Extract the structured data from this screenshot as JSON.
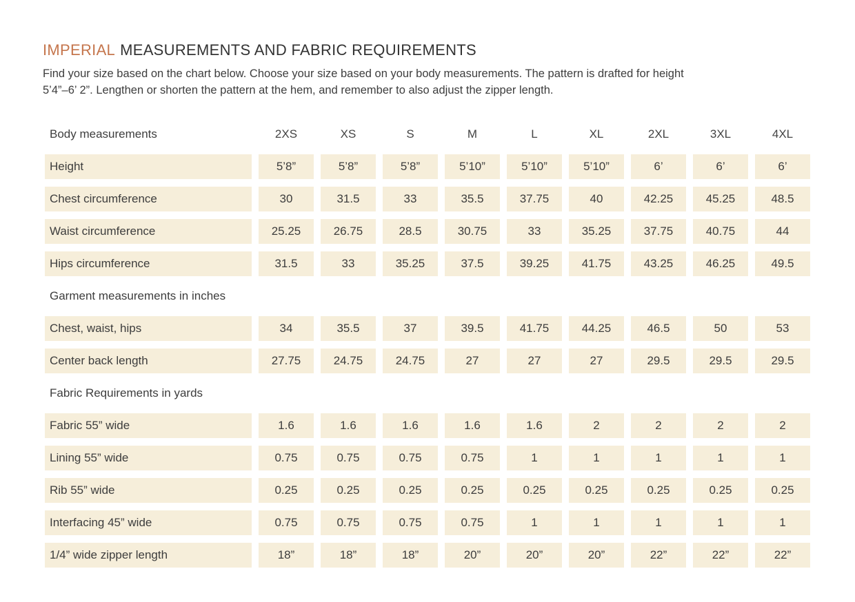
{
  "colors": {
    "accent_orange": "#c5764d",
    "cell_background": "#f6eeda",
    "text": "#3d3d3d"
  },
  "header": {
    "title_accent": "IMPERIAL",
    "title_rest": "MEASUREMENTS AND FABRIC REQUIREMENTS",
    "subtitle_line1": "Find your size based on the chart below. Choose your size based on your body measurements. The pattern is drafted for height",
    "subtitle_line2": "5’4”–6’ 2”. Lengthen or shorten the pattern at the hem, and remember to also adjust the zipper length."
  },
  "table": {
    "sizes_header_label": "Body measurements",
    "sizes": [
      "2XS",
      "XS",
      "S",
      "M",
      "L",
      "XL",
      "2XL",
      "3XL",
      "4XL"
    ],
    "sections": [
      {
        "header": null,
        "rows": [
          {
            "label": "Height",
            "values": [
              "5’8”",
              "5’8”",
              "5’8”",
              "5’10”",
              "5’10”",
              "5’10”",
              "6’",
              "6’",
              "6’"
            ]
          },
          {
            "label": "Chest circumference",
            "values": [
              "30",
              "31.5",
              "33",
              "35.5",
              "37.75",
              "40",
              "42.25",
              "45.25",
              "48.5"
            ]
          },
          {
            "label": "Waist circumference",
            "values": [
              "25.25",
              "26.75",
              "28.5",
              "30.75",
              "33",
              "35.25",
              "37.75",
              "40.75",
              "44"
            ]
          },
          {
            "label": "Hips circumference",
            "values": [
              "31.5",
              "33",
              "35.25",
              "37.5",
              "39.25",
              "41.75",
              "43.25",
              "46.25",
              "49.5"
            ]
          }
        ]
      },
      {
        "header": "Garment measurements in inches",
        "rows": [
          {
            "label": "Chest, waist, hips",
            "values": [
              "34",
              "35.5",
              "37",
              "39.5",
              "41.75",
              "44.25",
              "46.5",
              "50",
              "53"
            ]
          },
          {
            "label": "Center back length",
            "values": [
              "27.75",
              "24.75",
              "24.75",
              "27",
              "27",
              "27",
              "29.5",
              "29.5",
              "29.5"
            ]
          }
        ]
      },
      {
        "header": "Fabric Requirements in yards",
        "rows": [
          {
            "label": "Fabric 55” wide",
            "values": [
              "1.6",
              "1.6",
              "1.6",
              "1.6",
              "1.6",
              "2",
              "2",
              "2",
              "2"
            ]
          },
          {
            "label": "Lining 55” wide",
            "values": [
              "0.75",
              "0.75",
              "0.75",
              "0.75",
              "1",
              "1",
              "1",
              "1",
              "1"
            ]
          },
          {
            "label": "Rib 55” wide",
            "values": [
              "0.25",
              "0.25",
              "0.25",
              "0.25",
              "0.25",
              "0.25",
              "0.25",
              "0.25",
              "0.25"
            ]
          },
          {
            "label": "Interfacing 45” wide",
            "values": [
              "0.75",
              "0.75",
              "0.75",
              "0.75",
              "1",
              "1",
              "1",
              "1",
              "1"
            ]
          },
          {
            "label": "1/4” wide zipper length",
            "values": [
              "18”",
              "18”",
              "18”",
              "20”",
              "20”",
              "20”",
              "22”",
              "22”",
              "22”"
            ]
          }
        ]
      }
    ]
  },
  "chart_data": {
    "type": "table",
    "title": "IMPERIAL MEASUREMENTS AND FABRIC REQUIREMENTS",
    "columns": [
      "2XS",
      "XS",
      "S",
      "M",
      "L",
      "XL",
      "2XL",
      "3XL",
      "4XL"
    ],
    "rows": [
      {
        "group": "Body measurements",
        "label": "Height",
        "values": [
          "5’8”",
          "5’8”",
          "5’8”",
          "5’10”",
          "5’10”",
          "5’10”",
          "6’",
          "6’",
          "6’"
        ]
      },
      {
        "group": "Body measurements",
        "label": "Chest circumference",
        "values": [
          30,
          31.5,
          33,
          35.5,
          37.75,
          40,
          42.25,
          45.25,
          48.5
        ]
      },
      {
        "group": "Body measurements",
        "label": "Waist circumference",
        "values": [
          25.25,
          26.75,
          28.5,
          30.75,
          33,
          35.25,
          37.75,
          40.75,
          44
        ]
      },
      {
        "group": "Body measurements",
        "label": "Hips circumference",
        "values": [
          31.5,
          33,
          35.25,
          37.5,
          39.25,
          41.75,
          43.25,
          46.25,
          49.5
        ]
      },
      {
        "group": "Garment measurements in inches",
        "label": "Chest, waist, hips",
        "values": [
          34,
          35.5,
          37,
          39.5,
          41.75,
          44.25,
          46.5,
          50,
          53
        ]
      },
      {
        "group": "Garment measurements in inches",
        "label": "Center back length",
        "values": [
          27.75,
          24.75,
          24.75,
          27,
          27,
          27,
          29.5,
          29.5,
          29.5
        ]
      },
      {
        "group": "Fabric Requirements in yards",
        "label": "Fabric 55” wide",
        "values": [
          1.6,
          1.6,
          1.6,
          1.6,
          1.6,
          2,
          2,
          2,
          2
        ]
      },
      {
        "group": "Fabric Requirements in yards",
        "label": "Lining 55” wide",
        "values": [
          0.75,
          0.75,
          0.75,
          0.75,
          1,
          1,
          1,
          1,
          1
        ]
      },
      {
        "group": "Fabric Requirements in yards",
        "label": "Rib 55” wide",
        "values": [
          0.25,
          0.25,
          0.25,
          0.25,
          0.25,
          0.25,
          0.25,
          0.25,
          0.25
        ]
      },
      {
        "group": "Fabric Requirements in yards",
        "label": "Interfacing 45” wide",
        "values": [
          0.75,
          0.75,
          0.75,
          0.75,
          1,
          1,
          1,
          1,
          1
        ]
      },
      {
        "group": "Fabric Requirements in yards",
        "label": "1/4” wide zipper length",
        "values": [
          "18”",
          "18”",
          "18”",
          "20”",
          "20”",
          "20”",
          "22”",
          "22”",
          "22”"
        ]
      }
    ]
  }
}
